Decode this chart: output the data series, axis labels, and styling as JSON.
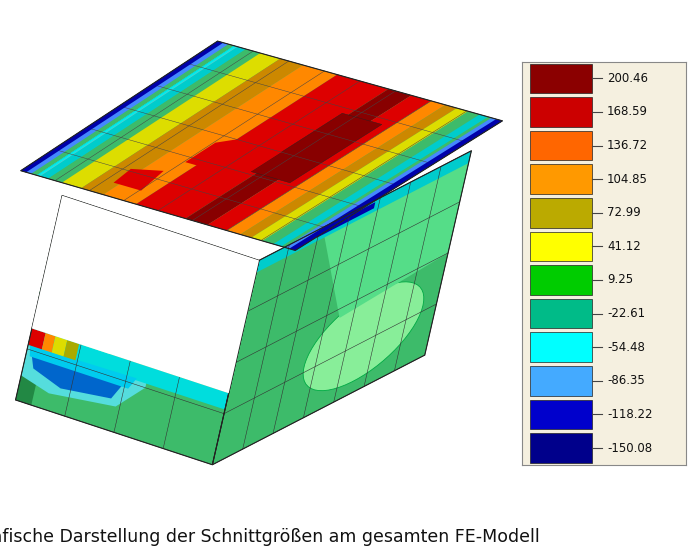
{
  "title": "Grafische Darstellung der Schnittgrößen am gesamten FE-Modell",
  "title_fontsize": 12.5,
  "background_color": "#ffffff",
  "legend_values": [
    200.46,
    168.59,
    136.72,
    104.85,
    72.99,
    41.12,
    9.25,
    -22.61,
    -54.48,
    -86.35,
    -118.22,
    -150.08
  ],
  "legend_colors": [
    "#8b0000",
    "#cc0000",
    "#ff6600",
    "#ff9900",
    "#bbaa00",
    "#ffff00",
    "#00cc00",
    "#00bb88",
    "#00ffff",
    "#44aaff",
    "#0000cc",
    "#00008b"
  ],
  "fig_width": 7.0,
  "fig_height": 5.6,
  "dpi": 100,
  "slab_extend": 0.07,
  "c_green_base": "#3dbb6a",
  "c_green_mid": "#55dd88",
  "c_green_lt": "#88ee99",
  "c_yellow": "#dddd00",
  "c_yellow2": "#aaaa00",
  "c_orange": "#ff8800",
  "c_red": "#dd0000",
  "c_dkred": "#880000",
  "c_cyan": "#00dddd",
  "c_ltcyan": "#00ffff",
  "c_blue": "#2255cc",
  "c_dkblue": "#0000aa",
  "c_teal": "#00cc99"
}
